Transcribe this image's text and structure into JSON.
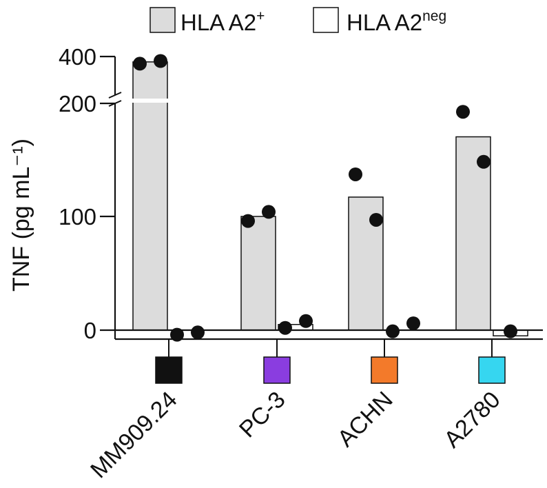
{
  "chart_data": {
    "type": "bar",
    "title": "",
    "xlabel": "",
    "ylabel": "TNF (pg mL⁻¹)",
    "y_axis": {
      "broken": true,
      "lower_range": [
        0,
        200
      ],
      "upper_range": [
        200,
        400
      ],
      "ticks": [
        {
          "value": 0,
          "label": "0"
        },
        {
          "value": 100,
          "label": "100"
        },
        {
          "value": 200,
          "label": "200"
        },
        {
          "value": 400,
          "label": "400"
        }
      ]
    },
    "legend": {
      "position": "top-right",
      "entries": [
        {
          "key": "pos",
          "text": "HLA A2",
          "sup": "+",
          "fill": "#dcdcdc"
        },
        {
          "key": "neg",
          "text": "HLA A2",
          "sup": "neg",
          "fill": "#ffffff"
        }
      ]
    },
    "categories": [
      "MM909.24",
      "PC-3",
      "ACHN",
      "A2780"
    ],
    "category_colors": [
      "#111111",
      "#8a3de0",
      "#f37a2a",
      "#36d6f0"
    ],
    "series": [
      {
        "name": "HLA A2+",
        "fill": "#dcdcdc",
        "values": [
          370,
          100,
          117,
          170
        ]
      },
      {
        "name": "HLA A2neg",
        "fill": "#ffffff",
        "values": [
          0,
          5,
          0,
          -5
        ]
      }
    ],
    "points": [
      {
        "category": "MM909.24",
        "series": "HLA A2+",
        "values": [
          360,
          375
        ]
      },
      {
        "category": "MM909.24",
        "series": "HLA A2neg",
        "values": [
          -4,
          -2
        ]
      },
      {
        "category": "PC-3",
        "series": "HLA A2+",
        "values": [
          96,
          104
        ]
      },
      {
        "category": "PC-3",
        "series": "HLA A2neg",
        "values": [
          2,
          8
        ]
      },
      {
        "category": "ACHN",
        "series": "HLA A2+",
        "values": [
          137,
          97
        ]
      },
      {
        "category": "ACHN",
        "series": "HLA A2neg",
        "values": [
          -1,
          6
        ]
      },
      {
        "category": "A2780",
        "series": "HLA A2+",
        "values": [
          192,
          148
        ]
      },
      {
        "category": "A2780",
        "series": "HLA A2neg",
        "values": [
          -1
        ]
      }
    ]
  },
  "colors": {
    "axis": "#111111",
    "bar_pos": "#dcdcdc",
    "bar_neg": "#ffffff",
    "dot": "#111111"
  }
}
